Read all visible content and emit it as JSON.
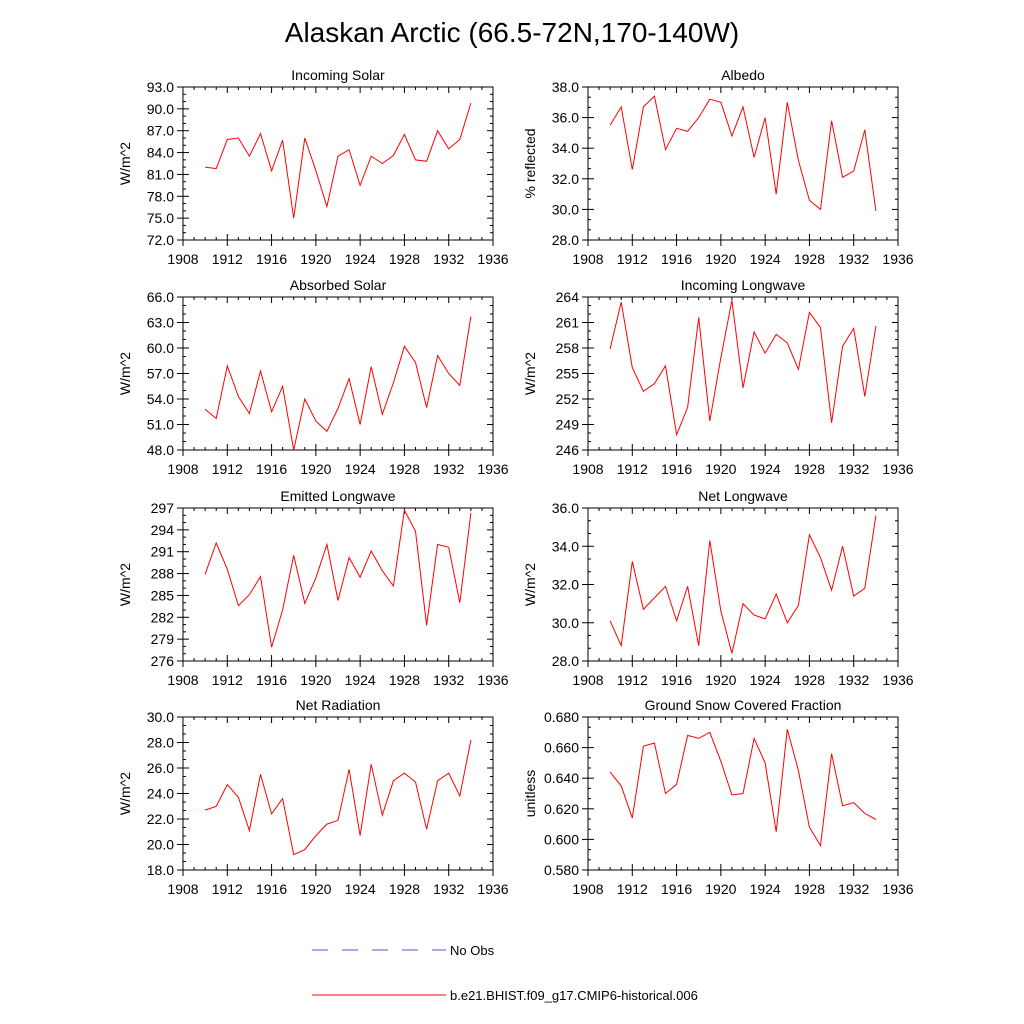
{
  "figure_title": "Alaskan Arctic (66.5-72N,170-140W)",
  "legend": {
    "entries": [
      {
        "label": "No Obs",
        "color": "#4a5bd4",
        "style": "dashed"
      },
      {
        "label": "b.e21.BHIST.f09_g17.CMIP6-historical.006",
        "color": "#ff0000",
        "style": "solid"
      }
    ]
  },
  "series_color": "#ff0000",
  "chart_data": [
    {
      "type": "line",
      "title": "Incoming Solar",
      "ylabel": "W/m^2",
      "xlim": [
        1908,
        1936
      ],
      "ylim": [
        72.0,
        93.0
      ],
      "x_ticks": [
        1908,
        1912,
        1916,
        1920,
        1924,
        1928,
        1932,
        1936
      ],
      "y_ticks": [
        72.0,
        75.0,
        78.0,
        81.0,
        84.0,
        87.0,
        90.0,
        93.0
      ],
      "y_decimals": 1,
      "x": [
        1910,
        1911,
        1912,
        1913,
        1914,
        1915,
        1916,
        1917,
        1918,
        1919,
        1920,
        1921,
        1922,
        1923,
        1924,
        1925,
        1926,
        1927,
        1928,
        1929,
        1930,
        1931,
        1932,
        1933,
        1934
      ],
      "values": [
        82.0,
        81.8,
        85.8,
        86.0,
        83.5,
        86.6,
        81.5,
        85.7,
        75.0,
        86.0,
        81.5,
        76.6,
        83.5,
        84.4,
        79.5,
        83.5,
        82.5,
        83.6,
        86.5,
        83.0,
        82.8,
        87.0,
        84.5,
        85.8,
        90.8
      ]
    },
    {
      "type": "line",
      "title": "Albedo",
      "ylabel": "% reflected",
      "xlim": [
        1908,
        1936
      ],
      "ylim": [
        28.0,
        38.0
      ],
      "x_ticks": [
        1908,
        1912,
        1916,
        1920,
        1924,
        1928,
        1932,
        1936
      ],
      "y_ticks": [
        28.0,
        30.0,
        32.0,
        34.0,
        36.0,
        38.0
      ],
      "y_decimals": 1,
      "x": [
        1910,
        1911,
        1912,
        1913,
        1914,
        1915,
        1916,
        1917,
        1918,
        1919,
        1920,
        1921,
        1922,
        1923,
        1924,
        1925,
        1926,
        1927,
        1928,
        1929,
        1930,
        1931,
        1932,
        1933,
        1934
      ],
      "values": [
        35.5,
        36.7,
        32.6,
        36.7,
        37.4,
        33.9,
        35.3,
        35.1,
        36.0,
        37.2,
        37.0,
        34.8,
        36.7,
        33.4,
        36.0,
        31.0,
        37.0,
        33.2,
        30.6,
        30.0,
        35.8,
        32.1,
        32.5,
        35.2,
        29.9
      ]
    },
    {
      "type": "line",
      "title": "Absorbed Solar",
      "ylabel": "W/m^2",
      "xlim": [
        1908,
        1936
      ],
      "ylim": [
        48.0,
        66.0
      ],
      "x_ticks": [
        1908,
        1912,
        1916,
        1920,
        1924,
        1928,
        1932,
        1936
      ],
      "y_ticks": [
        48.0,
        51.0,
        54.0,
        57.0,
        60.0,
        63.0,
        66.0
      ],
      "y_decimals": 1,
      "x": [
        1910,
        1911,
        1912,
        1913,
        1914,
        1915,
        1916,
        1917,
        1918,
        1919,
        1920,
        1921,
        1922,
        1923,
        1924,
        1925,
        1926,
        1927,
        1928,
        1929,
        1930,
        1931,
        1932,
        1933,
        1934
      ],
      "values": [
        52.8,
        51.7,
        57.9,
        54.3,
        52.3,
        57.3,
        52.5,
        55.5,
        48.0,
        54.0,
        51.4,
        50.2,
        52.9,
        56.4,
        51.0,
        57.8,
        52.2,
        55.9,
        60.2,
        58.3,
        53.0,
        59.1,
        57.0,
        55.6,
        63.7
      ]
    },
    {
      "type": "line",
      "title": "Incoming Longwave",
      "ylabel": "W/m^2",
      "xlim": [
        1908,
        1936
      ],
      "ylim": [
        246,
        264
      ],
      "x_ticks": [
        1908,
        1912,
        1916,
        1920,
        1924,
        1928,
        1932,
        1936
      ],
      "y_ticks": [
        246,
        249,
        252,
        255,
        258,
        261,
        264
      ],
      "y_decimals": 0,
      "x": [
        1910,
        1911,
        1912,
        1913,
        1914,
        1915,
        1916,
        1917,
        1918,
        1919,
        1920,
        1921,
        1922,
        1923,
        1924,
        1925,
        1926,
        1927,
        1928,
        1929,
        1930,
        1931,
        1932,
        1933,
        1934
      ],
      "values": [
        257.9,
        263.4,
        255.7,
        252.9,
        253.8,
        255.9,
        247.8,
        251.0,
        261.6,
        249.4,
        256.9,
        263.6,
        253.3,
        259.9,
        257.4,
        259.6,
        258.6,
        255.5,
        262.2,
        260.4,
        249.2,
        258.2,
        260.3,
        252.3,
        260.6
      ]
    },
    {
      "type": "line",
      "title": "Emitted Longwave",
      "ylabel": "W/m^2",
      "xlim": [
        1908,
        1936
      ],
      "ylim": [
        276,
        297
      ],
      "x_ticks": [
        1908,
        1912,
        1916,
        1920,
        1924,
        1928,
        1932,
        1936
      ],
      "y_ticks": [
        276,
        279,
        282,
        285,
        288,
        291,
        294,
        297
      ],
      "y_decimals": 0,
      "x": [
        1910,
        1911,
        1912,
        1913,
        1914,
        1915,
        1916,
        1917,
        1918,
        1919,
        1920,
        1921,
        1922,
        1923,
        1924,
        1925,
        1926,
        1927,
        1928,
        1929,
        1930,
        1931,
        1932,
        1933,
        1934
      ],
      "values": [
        287.9,
        292.2,
        288.6,
        283.6,
        285.1,
        287.6,
        277.9,
        283.0,
        290.5,
        283.9,
        287.4,
        292.0,
        284.3,
        290.2,
        287.5,
        291.1,
        288.4,
        286.3,
        296.7,
        293.8,
        280.9,
        292.0,
        291.6,
        284.0,
        296.3
      ]
    },
    {
      "type": "line",
      "title": "Net Longwave",
      "ylabel": "W/m^2",
      "xlim": [
        1908,
        1936
      ],
      "ylim": [
        28.0,
        36.0
      ],
      "x_ticks": [
        1908,
        1912,
        1916,
        1920,
        1924,
        1928,
        1932,
        1936
      ],
      "y_ticks": [
        28.0,
        30.0,
        32.0,
        34.0,
        36.0
      ],
      "y_decimals": 1,
      "x": [
        1910,
        1911,
        1912,
        1913,
        1914,
        1915,
        1916,
        1917,
        1918,
        1919,
        1920,
        1921,
        1922,
        1923,
        1924,
        1925,
        1926,
        1927,
        1928,
        1929,
        1930,
        1931,
        1932,
        1933,
        1934
      ],
      "values": [
        30.1,
        28.8,
        33.2,
        30.7,
        31.3,
        31.9,
        30.1,
        31.9,
        28.8,
        34.3,
        30.6,
        28.4,
        31.0,
        30.4,
        30.2,
        31.5,
        30.0,
        30.9,
        34.6,
        33.4,
        31.7,
        34.0,
        31.4,
        31.8,
        35.6
      ]
    },
    {
      "type": "line",
      "title": "Net Radiation",
      "ylabel": "W/m^2",
      "xlim": [
        1908,
        1936
      ],
      "ylim": [
        18.0,
        30.0
      ],
      "x_ticks": [
        1908,
        1912,
        1916,
        1920,
        1924,
        1928,
        1932,
        1936
      ],
      "y_ticks": [
        18.0,
        20.0,
        22.0,
        24.0,
        26.0,
        28.0,
        30.0
      ],
      "y_decimals": 1,
      "x": [
        1910,
        1911,
        1912,
        1913,
        1914,
        1915,
        1916,
        1917,
        1918,
        1919,
        1920,
        1921,
        1922,
        1923,
        1924,
        1925,
        1926,
        1927,
        1928,
        1929,
        1930,
        1931,
        1932,
        1933,
        1934
      ],
      "values": [
        22.7,
        23.0,
        24.7,
        23.7,
        21.1,
        25.5,
        22.4,
        23.6,
        19.2,
        19.6,
        20.7,
        21.6,
        21.9,
        25.9,
        20.7,
        26.3,
        22.3,
        25.0,
        25.6,
        24.9,
        21.2,
        25.0,
        25.6,
        23.8,
        28.2
      ]
    },
    {
      "type": "line",
      "title": "Ground Snow Covered Fraction",
      "ylabel": "unitless",
      "xlim": [
        1908,
        1936
      ],
      "ylim": [
        0.58,
        0.68
      ],
      "x_ticks": [
        1908,
        1912,
        1916,
        1920,
        1924,
        1928,
        1932,
        1936
      ],
      "y_ticks": [
        0.58,
        0.6,
        0.62,
        0.64,
        0.66,
        0.68
      ],
      "y_decimals": 3,
      "x": [
        1910,
        1911,
        1912,
        1913,
        1914,
        1915,
        1916,
        1917,
        1918,
        1919,
        1920,
        1921,
        1922,
        1923,
        1924,
        1925,
        1926,
        1927,
        1928,
        1929,
        1930,
        1931,
        1932,
        1933,
        1934
      ],
      "values": [
        0.644,
        0.635,
        0.614,
        0.661,
        0.663,
        0.63,
        0.636,
        0.668,
        0.666,
        0.67,
        0.651,
        0.629,
        0.63,
        0.666,
        0.65,
        0.605,
        0.672,
        0.645,
        0.608,
        0.596,
        0.656,
        0.622,
        0.624,
        0.617,
        0.613
      ]
    }
  ]
}
